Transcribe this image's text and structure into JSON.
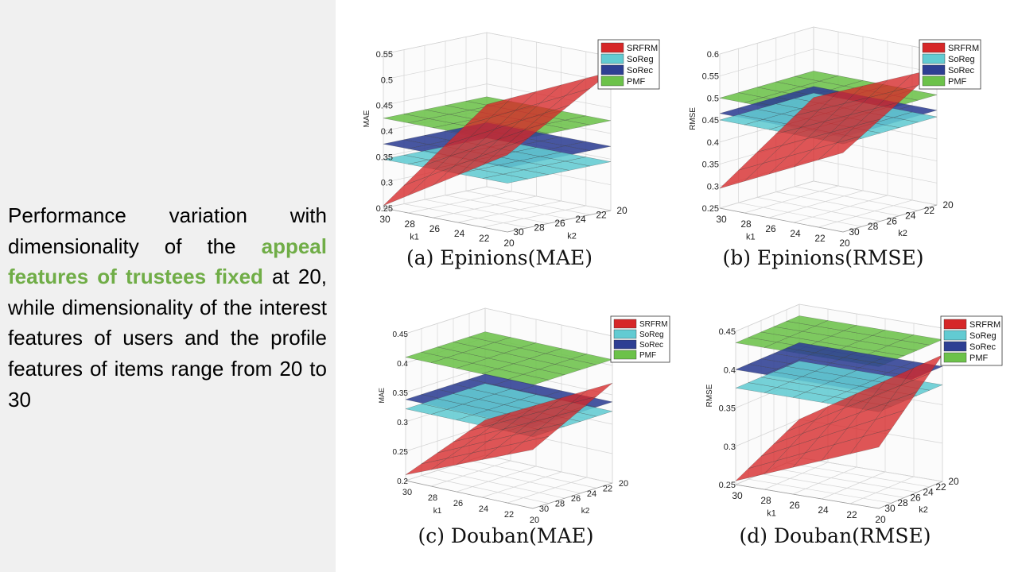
{
  "description": {
    "part1": "Performance variation with dimensionality of the ",
    "highlight": "appeal features of trustees fixed",
    "part2": " at 20, while dimensionality of the interest features of users and the profile features of items range from 20 to 30"
  },
  "colors": {
    "SRFRM": "#d62728",
    "SoReg": "#62cbd2",
    "SoRec": "#2e3f93",
    "PMF": "#6cc24a",
    "highlight": "#70ad47",
    "panel": "#f0f0f0"
  },
  "chart_data": [
    {
      "type": "surface3d",
      "caption": "(a) Epinions(MAE)",
      "xlabel": "k1",
      "ylabel": "k2",
      "zlabel": "MAE",
      "k1_ticks": [
        "30",
        "28",
        "26",
        "24",
        "22",
        "20"
      ],
      "k2_ticks": [
        "30",
        "28",
        "26",
        "24",
        "22",
        "20"
      ],
      "z_ticks": [
        "0.25",
        "0.3",
        "0.35",
        "0.4",
        "0.45",
        "0.5",
        "0.55"
      ],
      "zlim": [
        0.25,
        0.55
      ],
      "legend": [
        "SRFRM",
        "SoReg",
        "SoRec",
        "PMF"
      ],
      "series": [
        {
          "name": "PMF",
          "value": 0.425
        },
        {
          "name": "SoRec",
          "value": 0.375
        },
        {
          "name": "SoReg",
          "value": 0.345
        },
        {
          "name": "SRFRM",
          "corners": [
            0.255,
            0.4,
            0.52,
            0.41
          ]
        }
      ]
    },
    {
      "type": "surface3d",
      "caption": "(b) Epinions(RMSE)",
      "xlabel": "k1",
      "ylabel": "k2",
      "zlabel": "RMSE",
      "k1_ticks": [
        "30",
        "28",
        "26",
        "24",
        "22",
        "20"
      ],
      "k2_ticks": [
        "30",
        "28",
        "26",
        "24",
        "22",
        "20"
      ],
      "z_ticks": [
        "0.25",
        "0.3",
        "0.35",
        "0.4",
        "0.45",
        "0.5",
        "0.55",
        "0.6"
      ],
      "zlim": [
        0.25,
        0.6
      ],
      "legend": [
        "SRFRM",
        "SoReg",
        "SoRec",
        "PMF"
      ],
      "series": [
        {
          "name": "PMF",
          "value": 0.5
        },
        {
          "name": "SoRec",
          "value": 0.465
        },
        {
          "name": "SoReg",
          "value": 0.45
        },
        {
          "name": "SRFRM",
          "corners": [
            0.295,
            0.43,
            0.56,
            0.44
          ]
        }
      ]
    },
    {
      "type": "surface3d",
      "caption": "(c) Douban(MAE)",
      "xlabel": "k1",
      "ylabel": "k2",
      "zlabel": "MAE",
      "k1_ticks": [
        "30",
        "28",
        "26",
        "24",
        "22",
        "20"
      ],
      "k2_ticks": [
        "30",
        "28",
        "26",
        "24",
        "22",
        "20"
      ],
      "z_ticks": [
        "0.2",
        "0.25",
        "0.3",
        "0.35",
        "0.4",
        "0.45"
      ],
      "zlim": [
        0.2,
        0.45
      ],
      "legend": [
        "SRFRM",
        "SoReg",
        "SoRec",
        "PMF"
      ],
      "series": [
        {
          "name": "PMF",
          "value": 0.41
        },
        {
          "name": "SoRec",
          "value": 0.338
        },
        {
          "name": "SoReg",
          "value": 0.322
        },
        {
          "name": "SRFRM",
          "corners": [
            0.21,
            0.3,
            0.37,
            0.26
          ]
        }
      ]
    },
    {
      "type": "surface3d",
      "caption": "(d) Douban(RMSE)",
      "xlabel": "k1",
      "ylabel": "k2",
      "zlabel": "RMSE",
      "k1_ticks": [
        "30",
        "28",
        "26",
        "24",
        "22",
        "20"
      ],
      "k2_ticks": [
        "30",
        "28",
        "26",
        "24",
        "22",
        "20"
      ],
      "z_ticks": [
        "0.25",
        "0.3",
        "0.35",
        "0.4",
        "0.45"
      ],
      "zlim": [
        0.25,
        0.45
      ],
      "legend": [
        "SRFRM",
        "SoReg",
        "SoRec",
        "PMF"
      ],
      "series": [
        {
          "name": "PMF",
          "value": 0.435
        },
        {
          "name": "SoRec",
          "value": 0.4
        },
        {
          "name": "SoReg",
          "value": 0.376
        },
        {
          "name": "SRFRM",
          "corners": [
            0.255,
            0.33,
            0.415,
            0.3
          ]
        }
      ]
    }
  ]
}
